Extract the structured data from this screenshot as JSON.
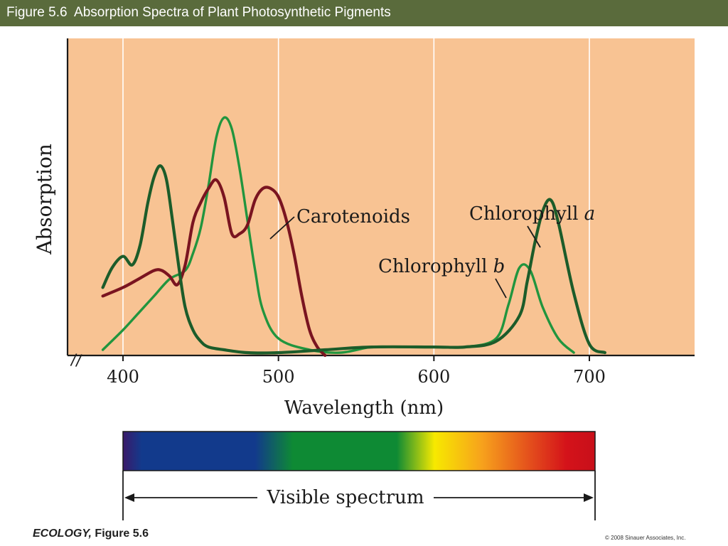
{
  "header": {
    "title": "Figure 5.6  Absorption Spectra of Plant Photosynthetic Pigments"
  },
  "colors": {
    "title_bar": "#5a6b3c",
    "plot_background": "#f8c393",
    "chlorophyll_a": "#1c5c2a",
    "chlorophyll_b": "#21953e",
    "carotenoids": "#7a1420"
  },
  "chart_data": {
    "type": "line",
    "xlabel": "Wavelength (nm)",
    "ylabel": "Absorption",
    "xlim": [
      360,
      760
    ],
    "ylim": [
      0,
      1
    ],
    "x_ticks": [
      400,
      500,
      600,
      700
    ],
    "x_tick_labels": [
      "400",
      "500",
      "600",
      "700"
    ],
    "grid": "vertical lines at 400, 500, 600, 700",
    "axis_break": "//",
    "series": [
      {
        "name": "Chlorophyll a",
        "label_parts": [
          "Chlorophyll ",
          "a"
        ],
        "x": [
          387,
          393,
          400,
          406,
          411,
          416,
          420,
          424,
          428,
          432,
          436,
          440,
          445,
          450,
          455,
          465,
          480,
          500,
          530,
          560,
          600,
          620,
          640,
          655,
          660,
          665,
          670,
          675,
          680,
          690,
          700,
          710
        ],
        "y": [
          0.24,
          0.31,
          0.35,
          0.32,
          0.39,
          0.54,
          0.63,
          0.67,
          0.62,
          0.47,
          0.31,
          0.17,
          0.09,
          0.05,
          0.03,
          0.02,
          0.01,
          0.01,
          0.02,
          0.03,
          0.03,
          0.03,
          0.05,
          0.14,
          0.26,
          0.4,
          0.51,
          0.55,
          0.47,
          0.22,
          0.04,
          0.01
        ]
      },
      {
        "name": "Chlorophyll b",
        "label_parts": [
          "Chlorophyll ",
          "b"
        ],
        "x": [
          387,
          400,
          410,
          420,
          430,
          440,
          445,
          450,
          455,
          460,
          465,
          470,
          475,
          480,
          485,
          490,
          500,
          520,
          540,
          560,
          580,
          600,
          620,
          640,
          648,
          655,
          662,
          670,
          680,
          690
        ],
        "y": [
          0.02,
          0.09,
          0.15,
          0.21,
          0.27,
          0.3,
          0.36,
          0.45,
          0.6,
          0.77,
          0.84,
          0.8,
          0.66,
          0.48,
          0.3,
          0.16,
          0.06,
          0.02,
          0.01,
          0.03,
          0.03,
          0.03,
          0.03,
          0.06,
          0.18,
          0.31,
          0.3,
          0.17,
          0.06,
          0.01
        ]
      },
      {
        "name": "Carotenoids",
        "label_parts": [
          "Carotenoids"
        ],
        "x": [
          387,
          400,
          410,
          420,
          425,
          430,
          435,
          440,
          445,
          450,
          455,
          460,
          465,
          470,
          475,
          480,
          485,
          490,
          495,
          500,
          505,
          510,
          515,
          520,
          525,
          530
        ],
        "y": [
          0.21,
          0.24,
          0.27,
          0.3,
          0.3,
          0.28,
          0.25,
          0.32,
          0.47,
          0.54,
          0.59,
          0.62,
          0.56,
          0.43,
          0.43,
          0.46,
          0.55,
          0.59,
          0.59,
          0.56,
          0.48,
          0.36,
          0.21,
          0.09,
          0.03,
          0.0
        ]
      }
    ]
  },
  "spectrum": {
    "label": "Visible spectrum",
    "start_nm": 400,
    "end_nm": 700,
    "colors": [
      "#3a1a6a",
      "#123a8c",
      "#123a8c",
      "#0e8a34",
      "#0e8a34",
      "#f7e900",
      "#f7a21c",
      "#e4501c",
      "#d4121a",
      "#c8101a"
    ]
  },
  "footer": {
    "book": "ECOLOGY,",
    "figure": " Figure 5.6",
    "copyright": "© 2008 Sinauer Associates, Inc."
  }
}
